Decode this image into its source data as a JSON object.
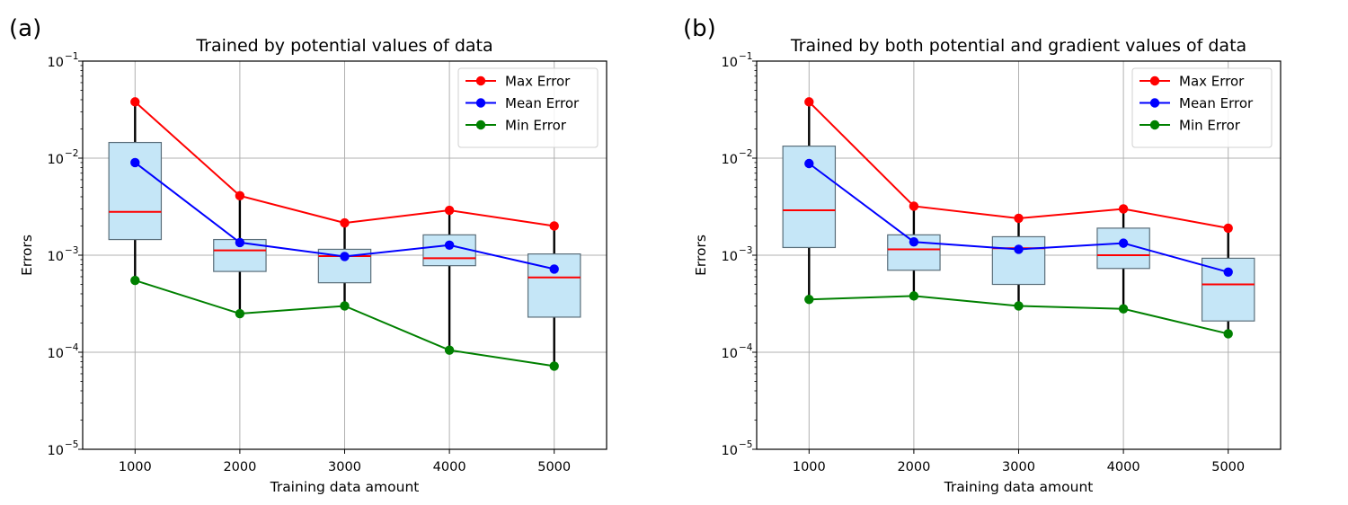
{
  "chart_data": [
    {
      "panel_label": "(a)",
      "type": "box",
      "title": "Trained by potential values of data",
      "xlabel": "Training data amount",
      "ylabel": "Errors",
      "yscale": "log",
      "ylim": [
        1e-05,
        0.1
      ],
      "y_ticks": [
        1e-05,
        0.0001,
        0.001,
        0.01,
        0.1
      ],
      "y_tick_base": "10",
      "y_tick_exponents": [
        "−5",
        "−4",
        "−3",
        "−2",
        "−1"
      ],
      "categories": [
        "1000",
        "2000",
        "3000",
        "4000",
        "5000"
      ],
      "x": [
        1000,
        2000,
        3000,
        4000,
        5000
      ],
      "grid": true,
      "legend_position": "top-right",
      "boxes": [
        {
          "x": 1000,
          "q1": 0.00145,
          "median": 0.0028,
          "q3": 0.0145,
          "whisker_low": 0.00055,
          "whisker_high": 0.038
        },
        {
          "x": 2000,
          "q1": 0.00068,
          "median": 0.00112,
          "q3": 0.00145,
          "whisker_low": 0.00025,
          "whisker_high": 0.0041
        },
        {
          "x": 3000,
          "q1": 0.00052,
          "median": 0.00098,
          "q3": 0.00115,
          "whisker_low": 0.0003,
          "whisker_high": 0.00215
        },
        {
          "x": 4000,
          "q1": 0.00078,
          "median": 0.00093,
          "q3": 0.00162,
          "whisker_low": 0.000105,
          "whisker_high": 0.0029
        },
        {
          "x": 5000,
          "q1": 0.00023,
          "median": 0.00059,
          "q3": 0.00103,
          "whisker_low": 7.2e-05,
          "whisker_high": 0.002
        }
      ],
      "series": [
        {
          "name": "Max Error",
          "color": "#ff0000",
          "values": [
            0.038,
            0.0041,
            0.00215,
            0.0029,
            0.002
          ]
        },
        {
          "name": "Mean Error",
          "color": "#0000ff",
          "values": [
            0.009,
            0.00135,
            0.00097,
            0.00127,
            0.00072
          ]
        },
        {
          "name": "Min Error",
          "color": "#008000",
          "values": [
            0.00055,
            0.00025,
            0.0003,
            0.000105,
            7.2e-05
          ]
        }
      ]
    },
    {
      "panel_label": "(b)",
      "type": "box",
      "title": "Trained by both potential and gradient values of data",
      "xlabel": "Training data amount",
      "ylabel": "Errors",
      "yscale": "log",
      "ylim": [
        1e-05,
        0.1
      ],
      "y_ticks": [
        1e-05,
        0.0001,
        0.001,
        0.01,
        0.1
      ],
      "y_tick_base": "10",
      "y_tick_exponents": [
        "−5",
        "−4",
        "−3",
        "−2",
        "−1"
      ],
      "categories": [
        "1000",
        "2000",
        "3000",
        "4000",
        "5000"
      ],
      "x": [
        1000,
        2000,
        3000,
        4000,
        5000
      ],
      "grid": true,
      "legend_position": "top-right",
      "boxes": [
        {
          "x": 1000,
          "q1": 0.0012,
          "median": 0.0029,
          "q3": 0.0133,
          "whisker_low": 0.00035,
          "whisker_high": 0.038
        },
        {
          "x": 2000,
          "q1": 0.0007,
          "median": 0.00115,
          "q3": 0.00162,
          "whisker_low": 0.00038,
          "whisker_high": 0.0032
        },
        {
          "x": 3000,
          "q1": 0.0005,
          "median": 0.00118,
          "q3": 0.00155,
          "whisker_low": 0.0003,
          "whisker_high": 0.0024
        },
        {
          "x": 4000,
          "q1": 0.00073,
          "median": 0.001,
          "q3": 0.0019,
          "whisker_low": 0.00028,
          "whisker_high": 0.003
        },
        {
          "x": 5000,
          "q1": 0.00021,
          "median": 0.0005,
          "q3": 0.00093,
          "whisker_low": 0.000155,
          "whisker_high": 0.0019
        }
      ],
      "series": [
        {
          "name": "Max Error",
          "color": "#ff0000",
          "values": [
            0.038,
            0.0032,
            0.0024,
            0.003,
            0.0019
          ]
        },
        {
          "name": "Mean Error",
          "color": "#0000ff",
          "values": [
            0.0088,
            0.00137,
            0.00115,
            0.00133,
            0.00067
          ]
        },
        {
          "name": "Min Error",
          "color": "#008000",
          "values": [
            0.00035,
            0.00038,
            0.0003,
            0.00028,
            0.000155
          ]
        }
      ]
    }
  ],
  "style": {
    "box_fill": "#c5e6f7",
    "box_edge": "#5a6e7a",
    "median_color": "#ff0000",
    "whisker_color": "#000000",
    "grid_color": "#b0b0b0",
    "axis_color": "#000000"
  }
}
